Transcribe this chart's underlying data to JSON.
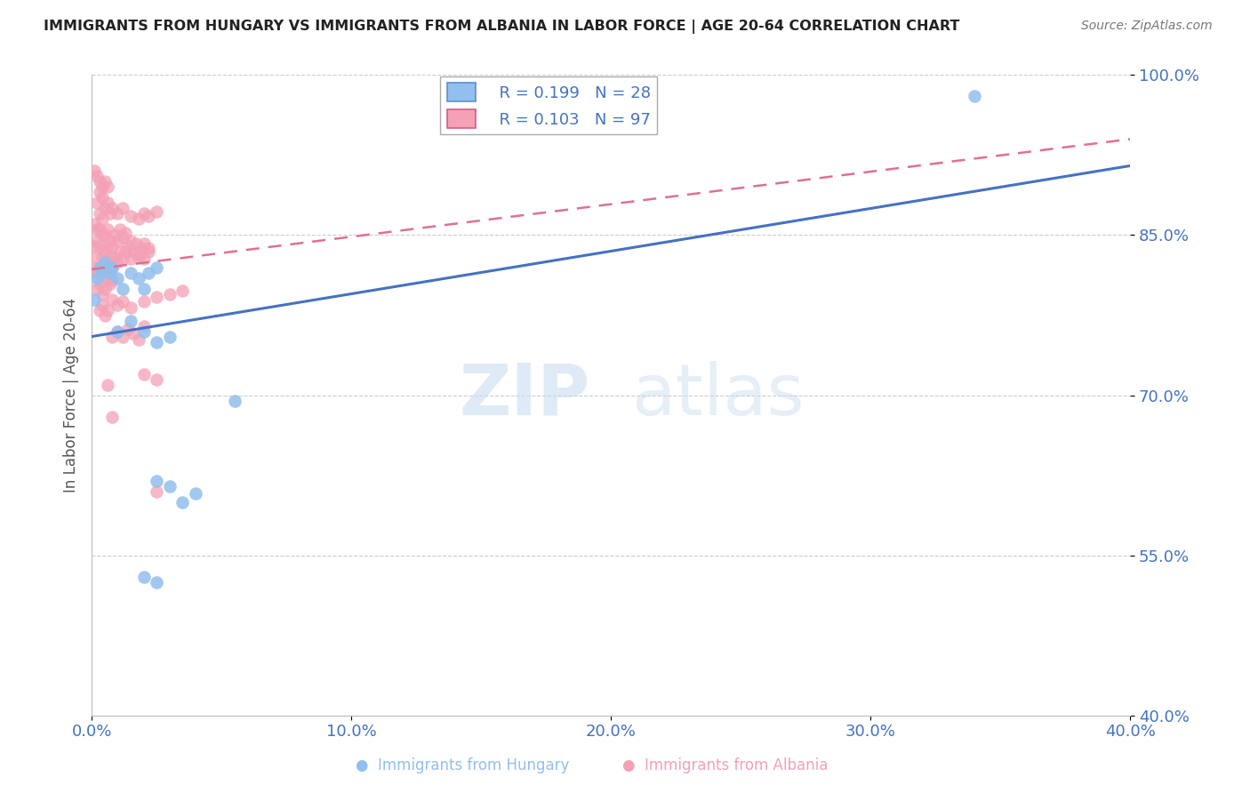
{
  "title": "IMMIGRANTS FROM HUNGARY VS IMMIGRANTS FROM ALBANIA IN LABOR FORCE | AGE 20-64 CORRELATION CHART",
  "source": "Source: ZipAtlas.com",
  "ylabel": "In Labor Force | Age 20-64",
  "xlim": [
    0.0,
    0.4
  ],
  "ylim": [
    0.4,
    1.0
  ],
  "yticks": [
    0.4,
    0.55,
    0.7,
    0.85,
    1.0
  ],
  "ytick_labels": [
    "40.0%",
    "55.0%",
    "70.0%",
    "85.0%",
    "100.0%"
  ],
  "xticks": [
    0.0,
    0.1,
    0.2,
    0.3,
    0.4
  ],
  "xtick_labels": [
    "0.0%",
    "10.0%",
    "20.0%",
    "30.0%",
    "40.0%"
  ],
  "legend_r_hungary": "R = 0.199",
  "legend_n_hungary": "N = 28",
  "legend_r_albania": "R = 0.103",
  "legend_n_albania": "N = 97",
  "hungary_color": "#92BFED",
  "albania_color": "#F4A0B5",
  "hungary_line_color": "#4472C4",
  "albania_line_color": "#E07090",
  "watermark_zip": "ZIP",
  "watermark_atlas": "atlas",
  "hungary_x": [
    0.001,
    0.002,
    0.003,
    0.004,
    0.005,
    0.006,
    0.007,
    0.008,
    0.01,
    0.012,
    0.015,
    0.018,
    0.02,
    0.022,
    0.025,
    0.01,
    0.015,
    0.02,
    0.025,
    0.03,
    0.025,
    0.03,
    0.035,
    0.04,
    0.055,
    0.02,
    0.025,
    0.34
  ],
  "hungary_y": [
    0.79,
    0.81,
    0.82,
    0.815,
    0.825,
    0.82,
    0.815,
    0.82,
    0.81,
    0.8,
    0.815,
    0.81,
    0.8,
    0.815,
    0.82,
    0.76,
    0.77,
    0.76,
    0.75,
    0.755,
    0.62,
    0.615,
    0.6,
    0.608,
    0.695,
    0.53,
    0.525,
    0.98
  ],
  "albania_x": [
    0.001,
    0.001,
    0.001,
    0.002,
    0.002,
    0.002,
    0.002,
    0.003,
    0.003,
    0.003,
    0.003,
    0.004,
    0.004,
    0.004,
    0.005,
    0.005,
    0.005,
    0.006,
    0.006,
    0.006,
    0.007,
    0.007,
    0.008,
    0.008,
    0.009,
    0.009,
    0.01,
    0.01,
    0.011,
    0.011,
    0.012,
    0.012,
    0.013,
    0.013,
    0.014,
    0.015,
    0.015,
    0.016,
    0.017,
    0.018,
    0.019,
    0.02,
    0.022,
    0.002,
    0.003,
    0.004,
    0.005,
    0.006,
    0.007,
    0.008,
    0.01,
    0.012,
    0.015,
    0.018,
    0.02,
    0.022,
    0.025,
    0.002,
    0.003,
    0.004,
    0.005,
    0.006,
    0.007,
    0.008,
    0.001,
    0.002,
    0.003,
    0.004,
    0.005,
    0.006,
    0.003,
    0.004,
    0.005,
    0.006,
    0.008,
    0.01,
    0.012,
    0.015,
    0.02,
    0.025,
    0.03,
    0.035,
    0.018,
    0.02,
    0.022,
    0.008,
    0.01,
    0.012,
    0.014,
    0.016,
    0.018,
    0.02,
    0.02,
    0.025,
    0.008,
    0.006,
    0.025
  ],
  "albania_y": [
    0.82,
    0.84,
    0.86,
    0.83,
    0.845,
    0.815,
    0.855,
    0.82,
    0.84,
    0.855,
    0.87,
    0.83,
    0.85,
    0.865,
    0.82,
    0.835,
    0.85,
    0.825,
    0.84,
    0.855,
    0.83,
    0.845,
    0.82,
    0.84,
    0.83,
    0.85,
    0.825,
    0.845,
    0.835,
    0.855,
    0.828,
    0.848,
    0.835,
    0.852,
    0.84,
    0.828,
    0.845,
    0.835,
    0.842,
    0.83,
    0.838,
    0.842,
    0.838,
    0.88,
    0.89,
    0.885,
    0.875,
    0.88,
    0.87,
    0.875,
    0.87,
    0.875,
    0.868,
    0.865,
    0.87,
    0.868,
    0.872,
    0.8,
    0.805,
    0.795,
    0.8,
    0.81,
    0.805,
    0.808,
    0.91,
    0.905,
    0.9,
    0.895,
    0.9,
    0.895,
    0.78,
    0.785,
    0.775,
    0.78,
    0.79,
    0.785,
    0.788,
    0.782,
    0.788,
    0.792,
    0.795,
    0.798,
    0.832,
    0.828,
    0.835,
    0.755,
    0.76,
    0.755,
    0.762,
    0.758,
    0.752,
    0.765,
    0.72,
    0.715,
    0.68,
    0.71,
    0.61
  ],
  "trend_hungary_x0": 0.0,
  "trend_hungary_y0": 0.755,
  "trend_hungary_x1": 0.4,
  "trend_hungary_y1": 0.915,
  "trend_albania_x0": 0.0,
  "trend_albania_y0": 0.818,
  "trend_albania_x1": 0.4,
  "trend_albania_y1": 0.94
}
